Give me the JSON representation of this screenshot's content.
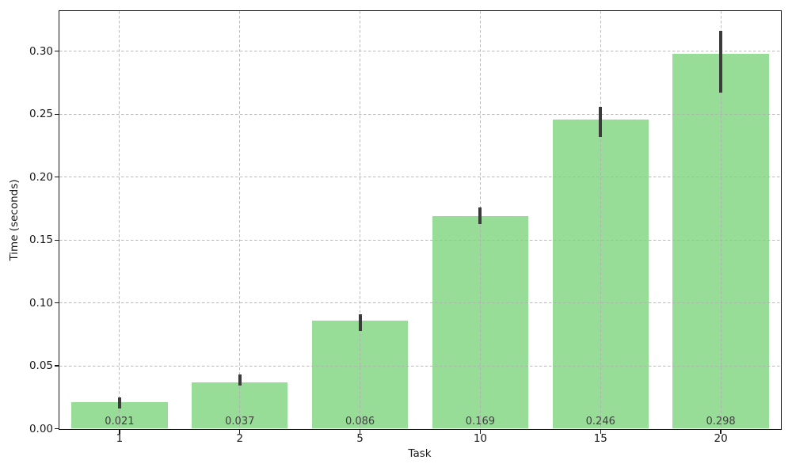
{
  "chart_data": {
    "type": "bar",
    "title": "",
    "xlabel": "Task",
    "ylabel": "Time (seconds)",
    "categories": [
      "1",
      "2",
      "5",
      "10",
      "15",
      "20"
    ],
    "values": [
      0.021,
      0.037,
      0.086,
      0.169,
      0.246,
      0.298
    ],
    "value_labels": [
      "0.021",
      "0.037",
      "0.086",
      "0.169",
      "0.246",
      "0.298"
    ],
    "error_ranges": [
      [
        0.016,
        0.025
      ],
      [
        0.034,
        0.043
      ],
      [
        0.078,
        0.091
      ],
      [
        0.163,
        0.176
      ],
      [
        0.232,
        0.256
      ],
      [
        0.267,
        0.316
      ]
    ],
    "yticks": [
      0.0,
      0.05,
      0.1,
      0.15,
      0.2,
      0.25,
      0.3
    ],
    "ytick_labels": [
      "0.00",
      "0.05",
      "0.10",
      "0.15",
      "0.20",
      "0.25",
      "0.30"
    ],
    "ylim": [
      0,
      0.332
    ],
    "grid": true,
    "grid_style": "dashed",
    "legend_position": "none",
    "bar_color": "#97dd97",
    "error_bar_color": "#3b3b3b",
    "value_label_color": "#404040",
    "background_color": "#ffffff"
  }
}
